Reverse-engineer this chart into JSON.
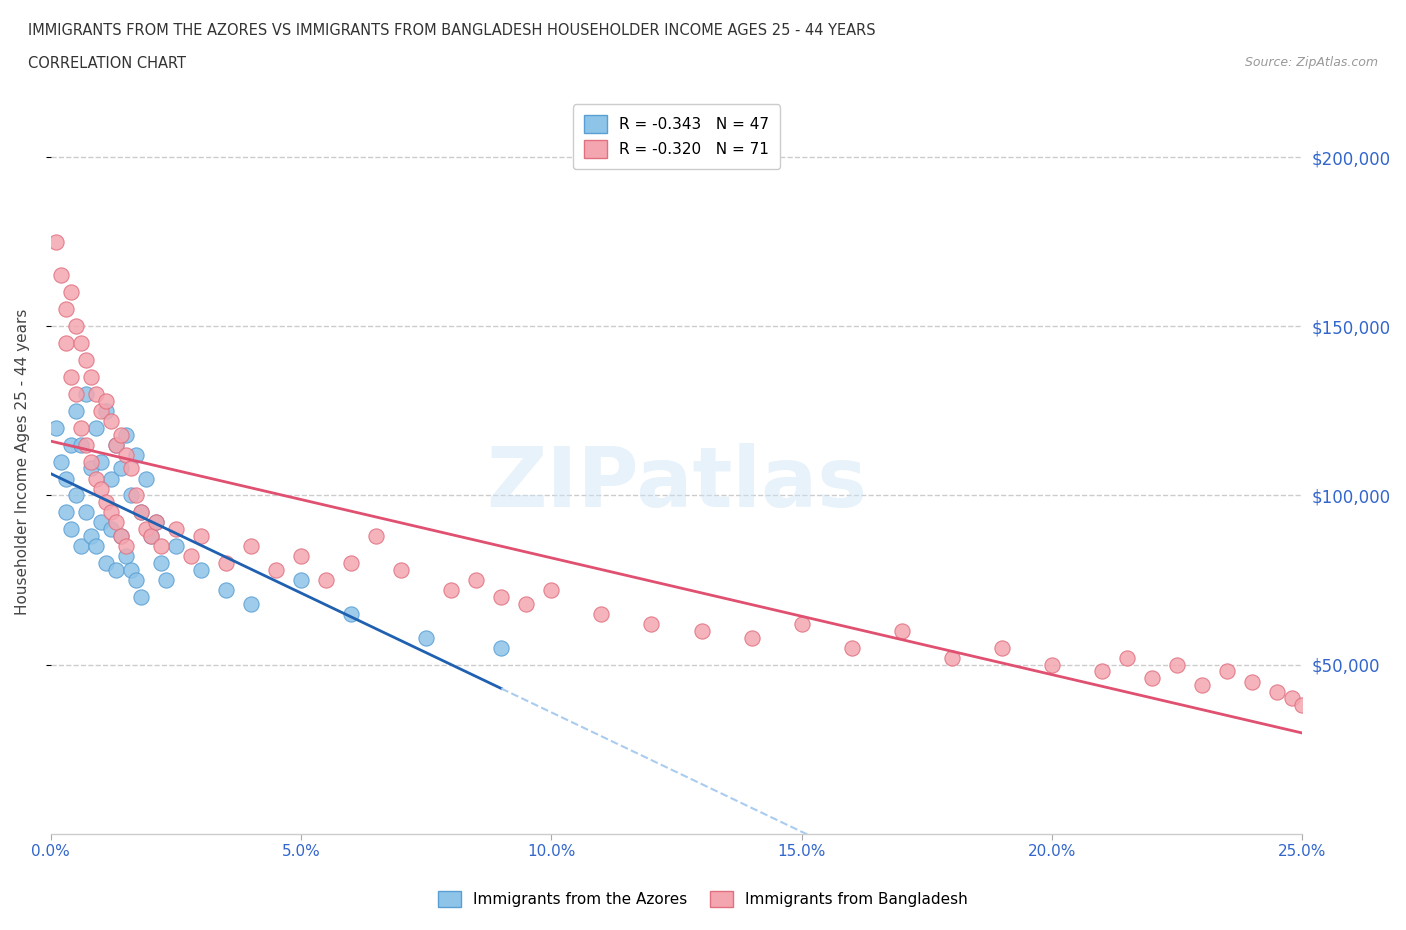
{
  "title_line1": "IMMIGRANTS FROM THE AZORES VS IMMIGRANTS FROM BANGLADESH HOUSEHOLDER INCOME AGES 25 - 44 YEARS",
  "title_line2": "CORRELATION CHART",
  "source_text": "Source: ZipAtlas.com",
  "watermark": "ZIPatlas",
  "ylabel": "Householder Income Ages 25 - 44 years",
  "xmin": 0.0,
  "xmax": 0.25,
  "ymin": 0,
  "ymax": 220000,
  "yticks": [
    50000,
    100000,
    150000,
    200000
  ],
  "ytick_labels": [
    "$50,000",
    "$100,000",
    "$150,000",
    "$200,000"
  ],
  "xtick_labels": [
    "0.0%",
    "5.0%",
    "10.0%",
    "15.0%",
    "20.0%",
    "25.0%"
  ],
  "xticks": [
    0.0,
    0.05,
    0.1,
    0.15,
    0.2,
    0.25
  ],
  "azores_color": "#8ec4e8",
  "azores_edge_color": "#5a9fd4",
  "bangladesh_color": "#f4a6b0",
  "bangladesh_edge_color": "#e07080",
  "regression_azores_color": "#2060b0",
  "regression_bangladesh_color": "#e05070",
  "regression_dashed_color": "#aaccee",
  "R_azores": -0.343,
  "N_azores": 47,
  "R_bangladesh": -0.32,
  "N_bangladesh": 71,
  "legend_label_azores": "Immigrants from the Azores",
  "legend_label_bangladesh": "Immigrants from Bangladesh",
  "azores_x": [
    0.001,
    0.002,
    0.003,
    0.003,
    0.004,
    0.004,
    0.005,
    0.005,
    0.006,
    0.006,
    0.007,
    0.007,
    0.008,
    0.008,
    0.009,
    0.009,
    0.01,
    0.01,
    0.011,
    0.011,
    0.012,
    0.012,
    0.013,
    0.013,
    0.014,
    0.014,
    0.015,
    0.015,
    0.016,
    0.016,
    0.017,
    0.017,
    0.018,
    0.018,
    0.019,
    0.02,
    0.021,
    0.022,
    0.023,
    0.025,
    0.03,
    0.035,
    0.04,
    0.05,
    0.06,
    0.075,
    0.09
  ],
  "azores_y": [
    120000,
    110000,
    105000,
    95000,
    115000,
    90000,
    125000,
    100000,
    115000,
    85000,
    130000,
    95000,
    108000,
    88000,
    120000,
    85000,
    110000,
    92000,
    125000,
    80000,
    105000,
    90000,
    115000,
    78000,
    108000,
    88000,
    118000,
    82000,
    100000,
    78000,
    112000,
    75000,
    95000,
    70000,
    105000,
    88000,
    92000,
    80000,
    75000,
    85000,
    78000,
    72000,
    68000,
    75000,
    65000,
    58000,
    55000
  ],
  "bangladesh_x": [
    0.001,
    0.002,
    0.003,
    0.003,
    0.004,
    0.004,
    0.005,
    0.005,
    0.006,
    0.006,
    0.007,
    0.007,
    0.008,
    0.008,
    0.009,
    0.009,
    0.01,
    0.01,
    0.011,
    0.011,
    0.012,
    0.012,
    0.013,
    0.013,
    0.014,
    0.014,
    0.015,
    0.015,
    0.016,
    0.017,
    0.018,
    0.019,
    0.02,
    0.021,
    0.022,
    0.025,
    0.028,
    0.03,
    0.035,
    0.04,
    0.045,
    0.05,
    0.055,
    0.06,
    0.065,
    0.07,
    0.08,
    0.085,
    0.09,
    0.095,
    0.1,
    0.11,
    0.12,
    0.13,
    0.14,
    0.15,
    0.16,
    0.17,
    0.18,
    0.19,
    0.2,
    0.21,
    0.215,
    0.22,
    0.225,
    0.23,
    0.235,
    0.24,
    0.245,
    0.248,
    0.25
  ],
  "bangladesh_y": [
    175000,
    165000,
    155000,
    145000,
    160000,
    135000,
    150000,
    130000,
    145000,
    120000,
    140000,
    115000,
    135000,
    110000,
    130000,
    105000,
    125000,
    102000,
    128000,
    98000,
    122000,
    95000,
    115000,
    92000,
    118000,
    88000,
    112000,
    85000,
    108000,
    100000,
    95000,
    90000,
    88000,
    92000,
    85000,
    90000,
    82000,
    88000,
    80000,
    85000,
    78000,
    82000,
    75000,
    80000,
    88000,
    78000,
    72000,
    75000,
    70000,
    68000,
    72000,
    65000,
    62000,
    60000,
    58000,
    62000,
    55000,
    60000,
    52000,
    55000,
    50000,
    48000,
    52000,
    46000,
    50000,
    44000,
    48000,
    45000,
    42000,
    40000,
    38000
  ]
}
